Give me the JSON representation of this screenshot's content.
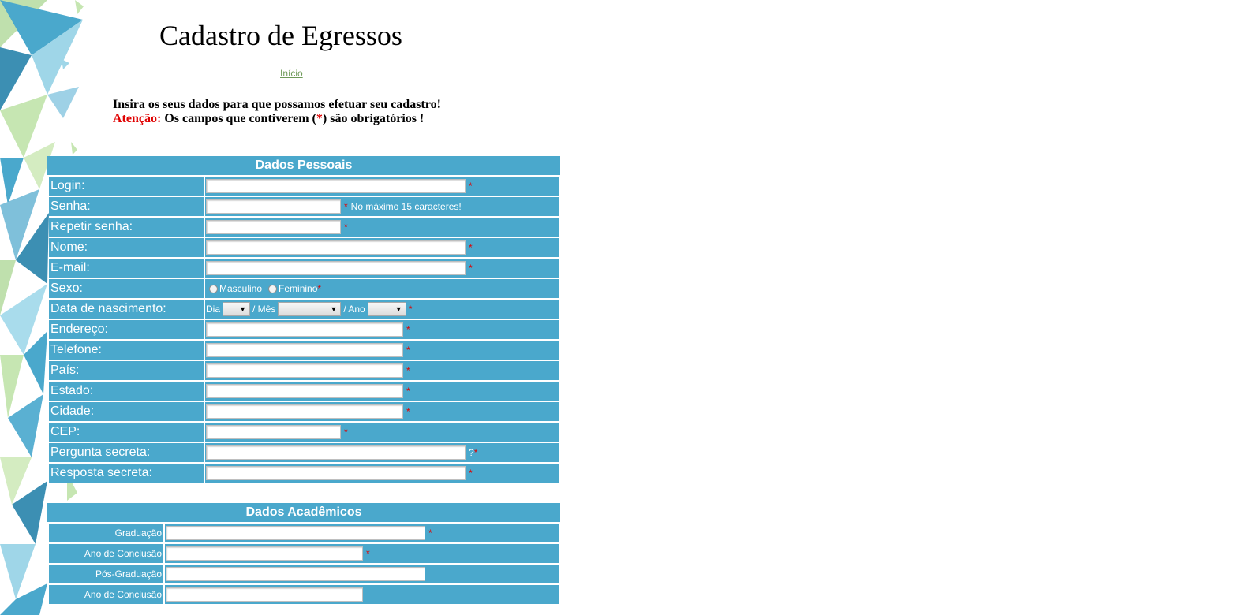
{
  "page": {
    "title": "Cadastro de Egressos",
    "nav_link": "Início",
    "intro_line": "Insira os seus dados para que possamos efetuar seu cadastro!",
    "warning_prefix": "Atenção:",
    "warning_text_a": " Os campos que contiverem (",
    "warning_star": "*",
    "warning_text_b": ") são obrigatórios !"
  },
  "colors": {
    "panel": "#4aa8cc",
    "required": "#e00000",
    "link": "#6e9a58"
  },
  "personal": {
    "header": "Dados Pessoais",
    "login": "Login:",
    "senha": "Senha:",
    "senha_note": "No máximo 15 caracteres!",
    "repetir_senha": "Repetir senha:",
    "nome": "Nome:",
    "email": "E-mail:",
    "sexo": "Sexo:",
    "sexo_masculino": "Masculino",
    "sexo_feminino": "Feminino",
    "nascimento": "Data de nascimento:",
    "dia": "Dia",
    "mes": "/ Mês",
    "ano": "/ Ano",
    "endereco": "Endereço:",
    "telefone": "Telefone:",
    "pais": "País:",
    "estado": "Estado:",
    "cidade": "Cidade:",
    "cep": "CEP:",
    "pergunta": "Pergunta secreta:",
    "pergunta_help": "?",
    "resposta": "Resposta secreta:",
    "required_mark": "*"
  },
  "academic": {
    "header": "Dados Acadêmicos",
    "graduacao": "Graduação",
    "ano_conclusao_1": "Ano de Conclusão",
    "pos_graduacao": "Pós-Graduação",
    "ano_conclusao_2": "Ano de Conclusão"
  },
  "dropdown_arrow": "▼"
}
